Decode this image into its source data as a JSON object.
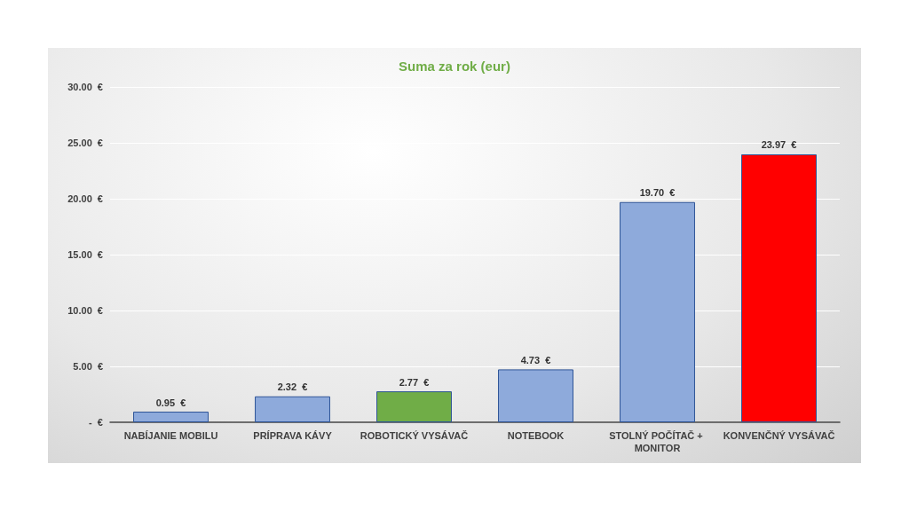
{
  "chart_data": {
    "type": "bar",
    "title": "Suma za rok (eur)",
    "categories": [
      "NABÍJANIE MOBILU",
      "PRÍPRAVA KÁVY",
      "ROBOTICKÝ VYSÁVAČ",
      "NOTEBOOK",
      "STOLNÝ POČÍTAČ + MONITOR",
      "KONVENČNÝ VYSÁVAČ"
    ],
    "values": [
      0.95,
      2.32,
      2.77,
      4.73,
      19.7,
      23.97
    ],
    "colors": [
      "#8eaadb",
      "#8eaadb",
      "#70ad47",
      "#8eaadb",
      "#8eaadb",
      "#ff0000"
    ],
    "value_labels": [
      "0.95  €",
      "2.32  €",
      "2.77  €",
      "4.73  €",
      "19.70  €",
      "23.97  €"
    ],
    "ylim": [
      0,
      30
    ],
    "yticks": [
      {
        "value": 0,
        "label": "-  €"
      },
      {
        "value": 5,
        "label": "5.00  €"
      },
      {
        "value": 10,
        "label": "10.00  €"
      },
      {
        "value": 15,
        "label": "15.00  €"
      },
      {
        "value": 20,
        "label": "20.00  €"
      },
      {
        "value": 25,
        "label": "25.00  €"
      },
      {
        "value": 30,
        "label": "30.00  €"
      }
    ],
    "grid": "y"
  }
}
